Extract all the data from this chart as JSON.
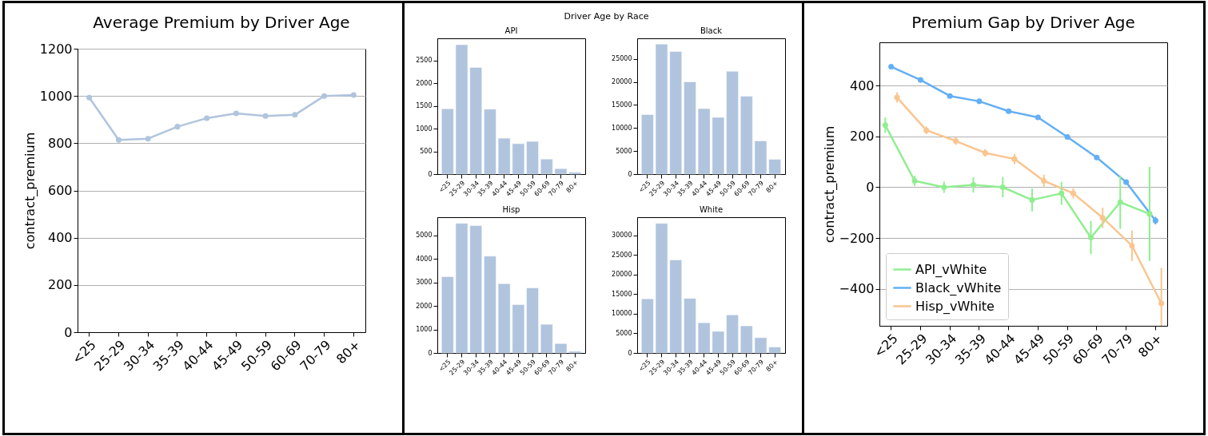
{
  "chart_data": [
    {
      "type": "line",
      "title": "Average Premium by Driver Age",
      "ylabel": "contract_premium",
      "categories": [
        "<25",
        "25-29",
        "30-34",
        "35-39",
        "40-44",
        "45-49",
        "50-59",
        "60-69",
        "70-79",
        "80+"
      ],
      "values": [
        993,
        814,
        819,
        870,
        906,
        926,
        915,
        920,
        1000,
        1004
      ],
      "color": "#b0c4de",
      "ylim": [
        0,
        1200
      ],
      "yticks": [
        0,
        200,
        400,
        600,
        800,
        1000,
        1200
      ],
      "grid": "y",
      "marker": "circle"
    },
    {
      "type": "other",
      "title": "Driver Age by Race"
    },
    {
      "type": "bar",
      "title": "API",
      "categories": [
        "<25",
        "25-29",
        "30-34",
        "35-39",
        "40-44",
        "45-49",
        "50-59",
        "60-69",
        "70-79",
        "80+"
      ],
      "values": [
        1440,
        2850,
        2350,
        1430,
        790,
        670,
        720,
        330,
        120,
        40
      ],
      "color": "#b0c4de",
      "ylim": [
        0,
        2990
      ],
      "yticks": [
        0,
        500,
        1000,
        1500,
        2000,
        2500
      ]
    },
    {
      "type": "bar",
      "title": "Black",
      "categories": [
        "<25",
        "25-29",
        "30-34",
        "35-39",
        "40-44",
        "45-49",
        "50-59",
        "60-69",
        "70-79",
        "80+"
      ],
      "values": [
        12900,
        28200,
        26600,
        20000,
        14200,
        12300,
        22300,
        16900,
        7200,
        3200
      ],
      "color": "#b0c4de",
      "ylim": [
        0,
        29450
      ],
      "yticks": [
        0,
        5000,
        10000,
        15000,
        20000,
        25000
      ]
    },
    {
      "type": "bar",
      "title": "Hisp",
      "categories": [
        "<25",
        "25-29",
        "30-34",
        "35-39",
        "40-44",
        "45-49",
        "50-59",
        "60-69",
        "70-79",
        "80+"
      ],
      "values": [
        3250,
        5520,
        5420,
        4120,
        2950,
        2060,
        2770,
        1220,
        400,
        70
      ],
      "color": "#b0c4de",
      "ylim": [
        0,
        5780
      ],
      "yticks": [
        0,
        1000,
        2000,
        3000,
        4000,
        5000
      ]
    },
    {
      "type": "bar",
      "title": "White",
      "categories": [
        "<25",
        "25-29",
        "30-34",
        "35-39",
        "40-44",
        "45-49",
        "50-59",
        "60-69",
        "70-79",
        "80+"
      ],
      "values": [
        13800,
        33000,
        23700,
        13900,
        7700,
        5500,
        9700,
        6900,
        3900,
        1500
      ],
      "color": "#b0c4de",
      "ylim": [
        0,
        34590
      ],
      "yticks": [
        0,
        5000,
        10000,
        15000,
        20000,
        25000,
        30000
      ]
    },
    {
      "type": "line",
      "title": "Premium Gap by Driver Age",
      "ylabel": "contract_premium",
      "categories": [
        "<25",
        "25-29",
        "30-34",
        "35-39",
        "40-44",
        "45-49",
        "50-59",
        "60-69",
        "70-79",
        "80+"
      ],
      "series": [
        {
          "name": "API_vWhite",
          "color": "#90ee90",
          "values": [
            244,
            25,
            0,
            9,
            0,
            -50,
            -24,
            -198,
            -59,
            -105
          ],
          "errors": [
            30,
            20,
            22,
            30,
            40,
            45,
            45,
            65,
            105,
            185
          ]
        },
        {
          "name": "Black_vWhite",
          "color": "#63aff5",
          "values": [
            474,
            422,
            359,
            338,
            299,
            275,
            198,
            117,
            20,
            -131
          ],
          "errors": [
            null,
            null,
            null,
            null,
            null,
            null,
            null,
            null,
            null,
            15
          ]
        },
        {
          "name": "Hisp_vWhite",
          "color": "#fac590",
          "values": [
            353,
            224,
            182,
            135,
            111,
            25,
            -24,
            -120,
            -230,
            -457
          ],
          "errors": [
            20,
            15,
            15,
            15,
            20,
            25,
            20,
            40,
            60,
            [
              -545,
              -317
            ]
          ]
        }
      ],
      "ylim": [
        -545,
        570
      ],
      "yticks": [
        -400,
        -200,
        0,
        200,
        400
      ],
      "grid": "y",
      "legend": "bottom left",
      "marker": "circle"
    }
  ]
}
